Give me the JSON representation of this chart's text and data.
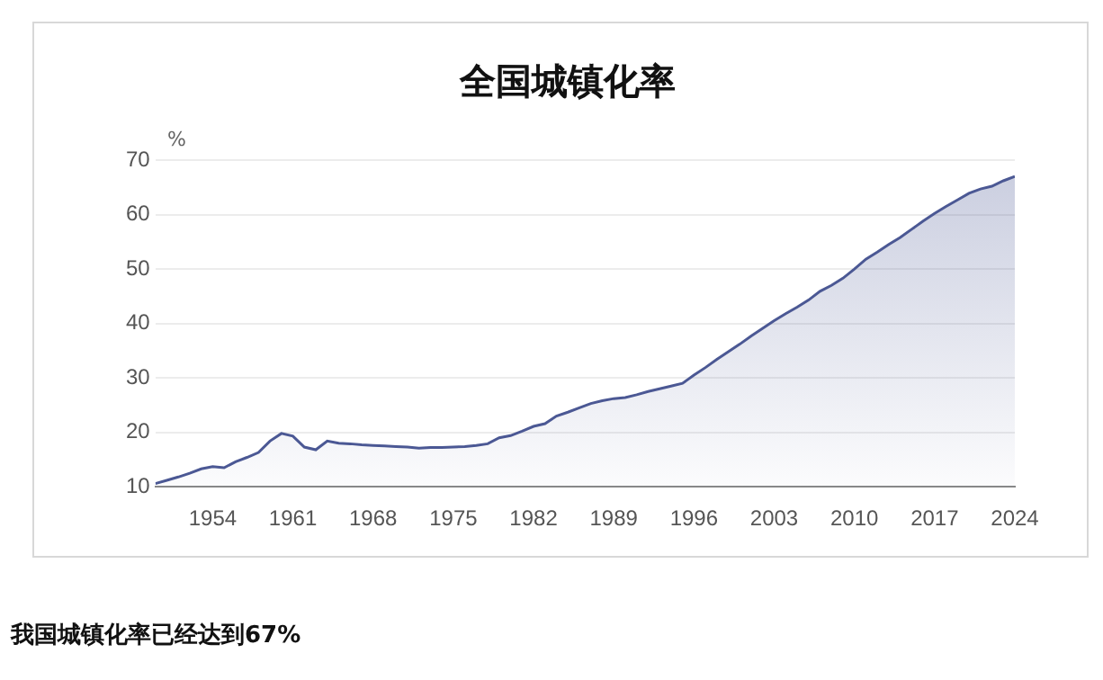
{
  "chart_data": {
    "type": "area",
    "title": "全国城镇化率",
    "ylabel": "%",
    "color": "#4b5894",
    "x": [
      1949,
      1950,
      1951,
      1952,
      1953,
      1954,
      1955,
      1956,
      1957,
      1958,
      1959,
      1960,
      1961,
      1962,
      1963,
      1964,
      1965,
      1966,
      1967,
      1968,
      1969,
      1970,
      1971,
      1972,
      1973,
      1974,
      1975,
      1976,
      1977,
      1978,
      1979,
      1980,
      1981,
      1982,
      1983,
      1984,
      1985,
      1986,
      1987,
      1988,
      1989,
      1990,
      1991,
      1992,
      1993,
      1994,
      1995,
      1996,
      1997,
      1998,
      1999,
      2000,
      2001,
      2002,
      2003,
      2004,
      2005,
      2006,
      2007,
      2008,
      2009,
      2010,
      2011,
      2012,
      2013,
      2014,
      2015,
      2016,
      2017,
      2018,
      2019,
      2020,
      2021,
      2022,
      2023,
      2024
    ],
    "values": [
      10.6,
      11.2,
      11.8,
      12.5,
      13.3,
      13.7,
      13.5,
      14.6,
      15.4,
      16.3,
      18.4,
      19.8,
      19.3,
      17.3,
      16.8,
      18.4,
      18.0,
      17.9,
      17.7,
      17.6,
      17.5,
      17.4,
      17.3,
      17.1,
      17.2,
      17.2,
      17.3,
      17.4,
      17.6,
      17.9,
      19.0,
      19.4,
      20.2,
      21.1,
      21.6,
      23.0,
      23.7,
      24.5,
      25.3,
      25.8,
      26.2,
      26.4,
      26.9,
      27.5,
      28.0,
      28.5,
      29.0,
      30.5,
      31.9,
      33.4,
      34.8,
      36.2,
      37.7,
      39.1,
      40.5,
      41.8,
      43.0,
      44.3,
      45.9,
      47.0,
      48.3,
      50.0,
      51.8,
      53.1,
      54.5,
      55.8,
      57.3,
      58.8,
      60.2,
      61.5,
      62.7,
      63.9,
      64.7,
      65.2,
      66.2,
      67.0
    ],
    "xlim": [
      1949,
      2024
    ],
    "xticks": [
      1954,
      1961,
      1968,
      1975,
      1982,
      1989,
      1996,
      2003,
      2010,
      2017,
      2024
    ],
    "ylim": [
      10,
      70
    ],
    "yticks": [
      10,
      20,
      30,
      40,
      50,
      60,
      70
    ],
    "grid": "y",
    "legend": false,
    "marker": "none",
    "annotations": [
      "我国城镇化率已经达到67%"
    ]
  }
}
